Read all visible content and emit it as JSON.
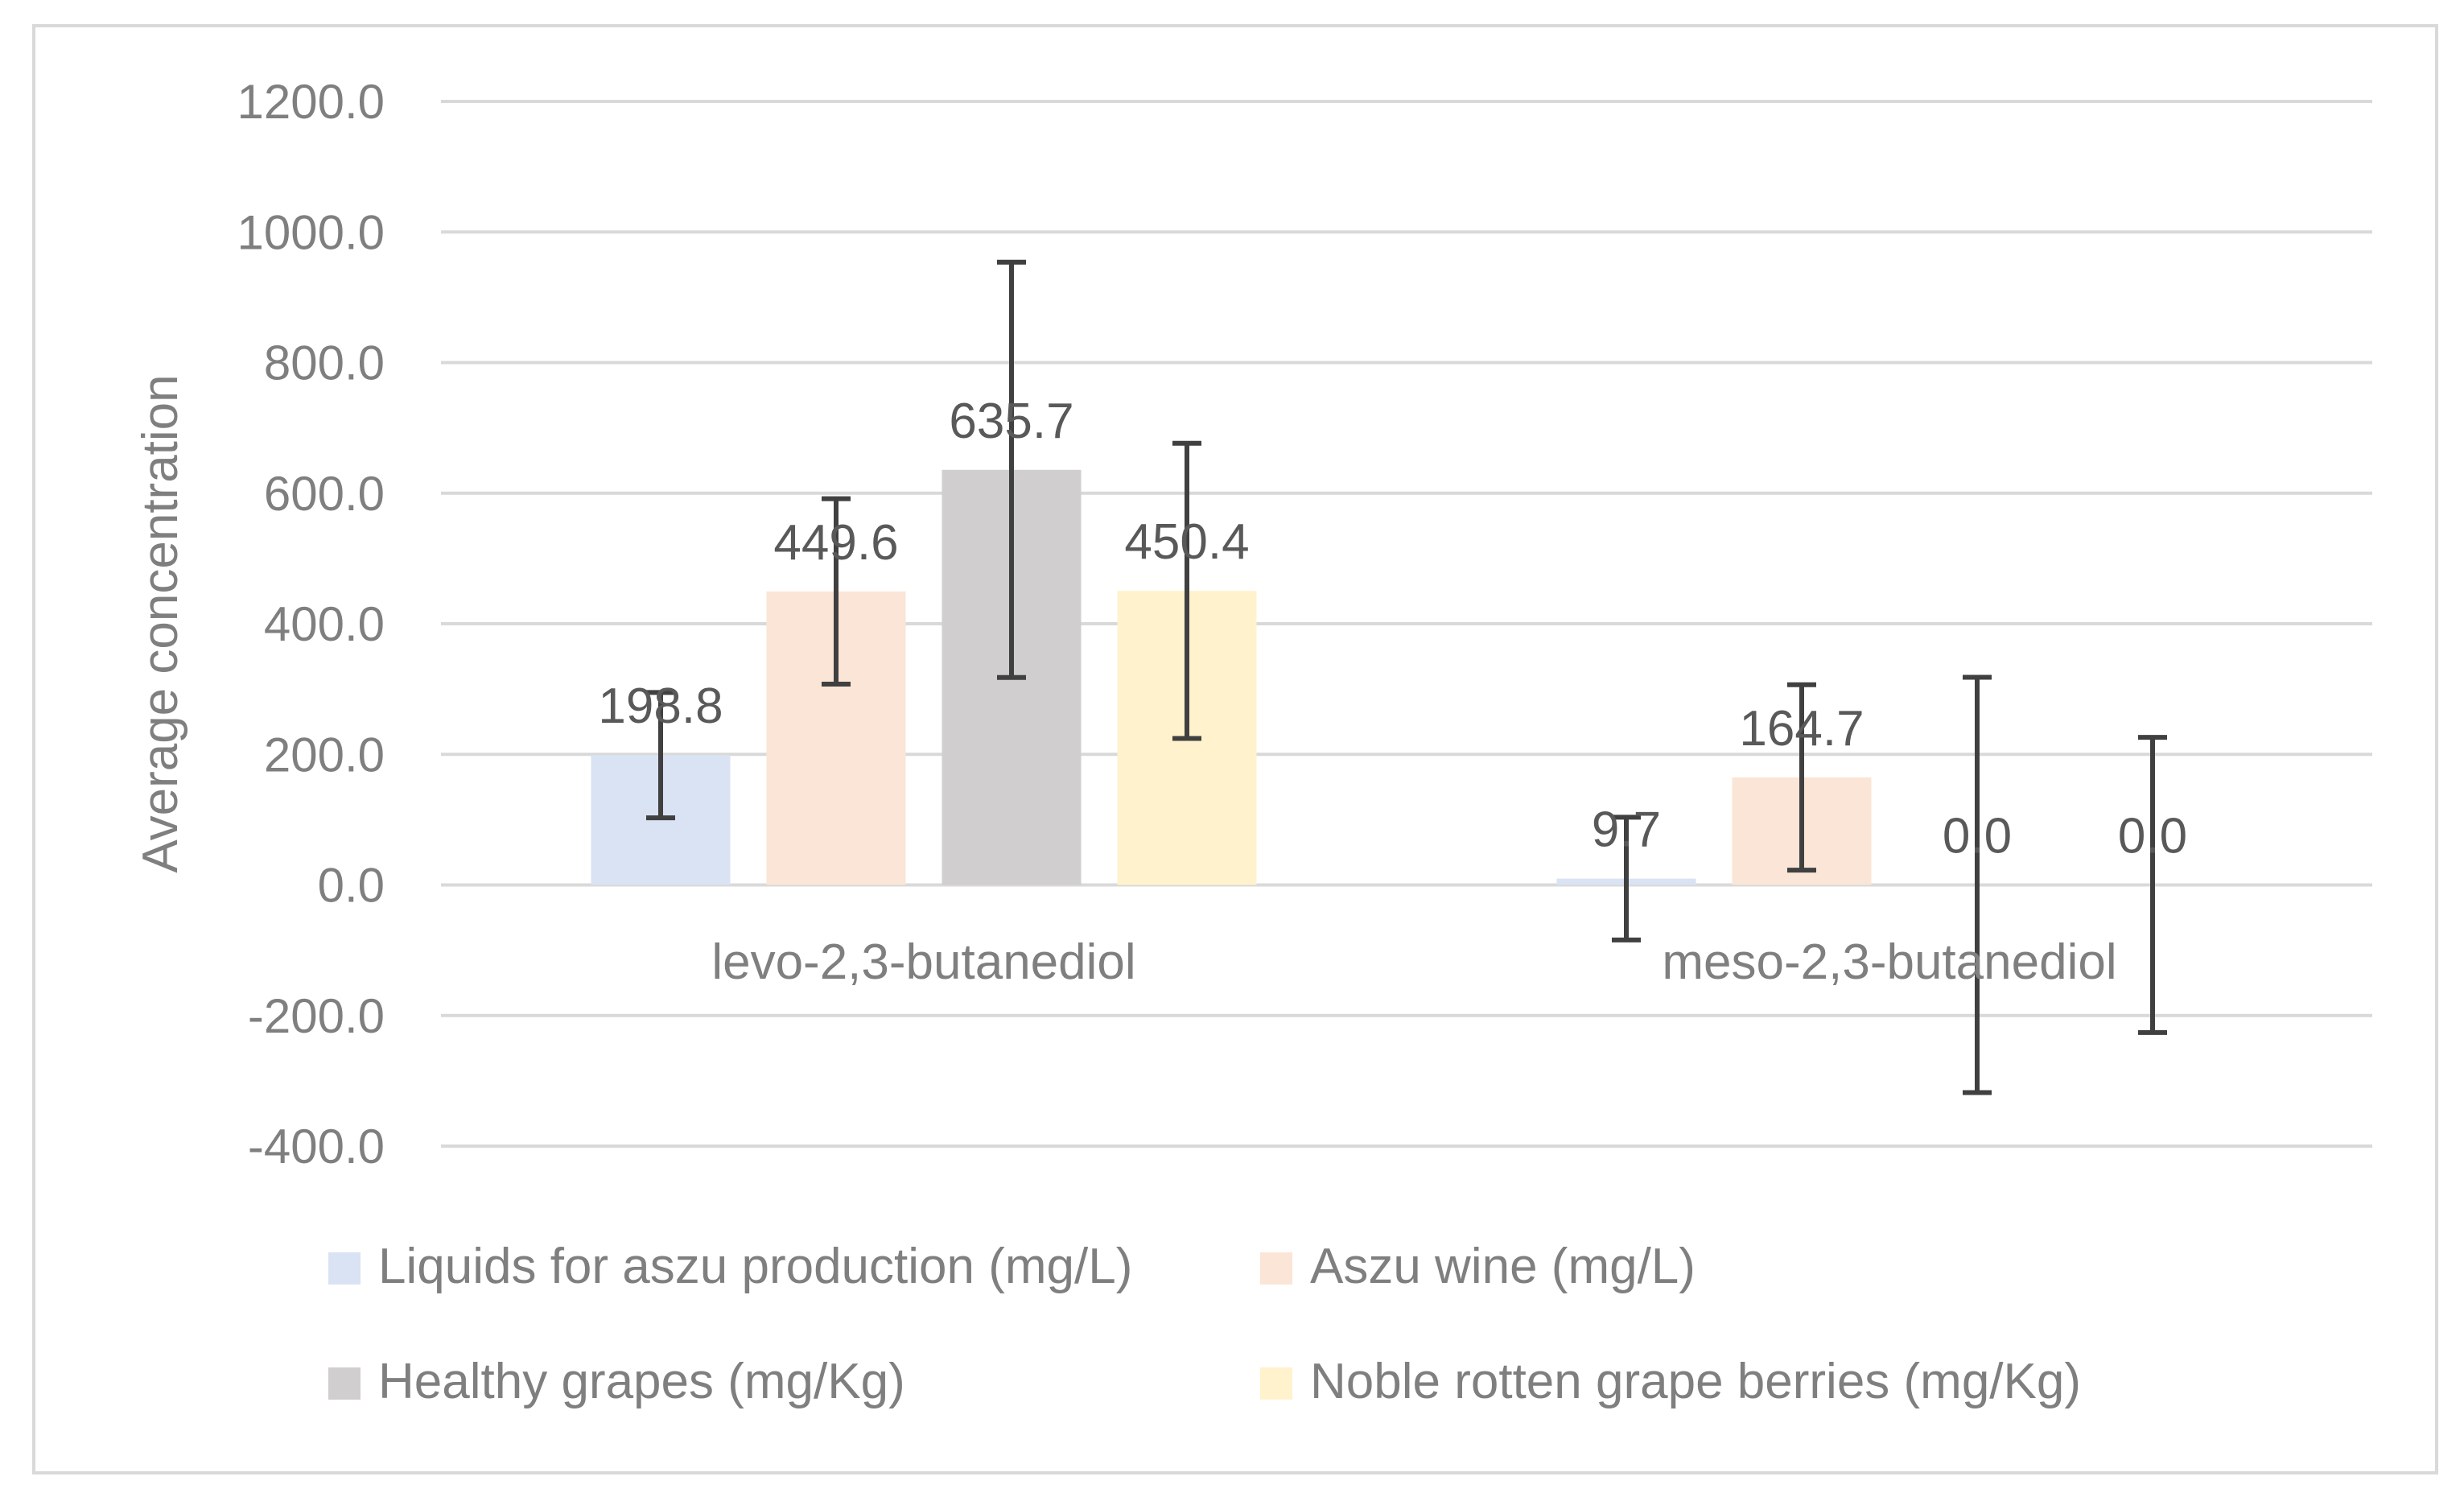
{
  "chart_data": {
    "type": "bar",
    "title": "",
    "xlabel": "",
    "ylabel": "Average concentration",
    "ylim": [
      -400,
      1200
    ],
    "yticks": [
      1200,
      1000,
      800,
      600,
      400,
      200,
      0,
      -200,
      -400
    ],
    "ytick_labels": [
      "1200.0",
      "1000.0",
      "800.0",
      "600.0",
      "400.0",
      "200.0",
      "0.0",
      "-200.0",
      "-400.0"
    ],
    "grid": true,
    "legend_position": "bottom",
    "categories": [
      "levo-2,3-butanediol",
      "meso-2,3-butanediol"
    ],
    "series": [
      {
        "name": "Liquids for aszu production (mg/L)",
        "color": "#dae3f3",
        "values": [
          198.8,
          9.7
        ],
        "errors": [
          96,
          94
        ],
        "labels": [
          "198.8",
          "9.7"
        ]
      },
      {
        "name": "Aszu wine (mg/L)",
        "color": "#fbe5d6",
        "values": [
          449.6,
          164.7
        ],
        "errors": [
          142,
          142
        ],
        "labels": [
          "449.6",
          "164.7"
        ]
      },
      {
        "name": "Healthy grapes (mg/Kg)",
        "color": "#d0cece",
        "values": [
          635.7,
          0.0
        ],
        "errors": [
          318,
          318
        ],
        "labels": [
          "635.7",
          "0.0"
        ]
      },
      {
        "name": "Noble rotten grape berries (mg/Kg)",
        "color": "#fff2cc",
        "values": [
          450.4,
          0.0
        ],
        "errors": [
          226,
          226
        ],
        "labels": [
          "450.4",
          "0.0"
        ]
      }
    ]
  }
}
